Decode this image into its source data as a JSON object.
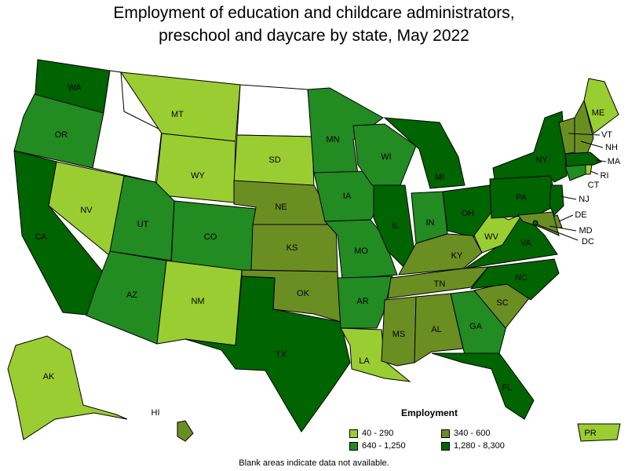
{
  "title_line1": "Employment of education and childcare administrators,",
  "title_line2": "preschool and daycare by state, May 2022",
  "legend": {
    "title": "Employment",
    "items": [
      {
        "label": "40 - 290",
        "color": "#9acd32"
      },
      {
        "label": "340 - 600",
        "color": "#6b8e23"
      },
      {
        "label": "640 - 1,250",
        "color": "#228b22"
      },
      {
        "label": "1,280 - 8,300",
        "color": "#006400"
      }
    ]
  },
  "note": "Blank areas indicate data not available.",
  "states": [
    {
      "abbr": "WA",
      "bin": 3
    },
    {
      "abbr": "OR",
      "bin": 2
    },
    {
      "abbr": "CA",
      "bin": 3
    },
    {
      "abbr": "NV",
      "bin": 0
    },
    {
      "abbr": "ID",
      "bin": -1
    },
    {
      "abbr": "MT",
      "bin": 0
    },
    {
      "abbr": "WY",
      "bin": 0
    },
    {
      "abbr": "UT",
      "bin": 2
    },
    {
      "abbr": "AZ",
      "bin": 2
    },
    {
      "abbr": "CO",
      "bin": 2
    },
    {
      "abbr": "NM",
      "bin": 0
    },
    {
      "abbr": "ND",
      "bin": -1
    },
    {
      "abbr": "SD",
      "bin": 0
    },
    {
      "abbr": "NE",
      "bin": 1
    },
    {
      "abbr": "KS",
      "bin": 1
    },
    {
      "abbr": "OK",
      "bin": 1
    },
    {
      "abbr": "TX",
      "bin": 3
    },
    {
      "abbr": "MN",
      "bin": 2
    },
    {
      "abbr": "IA",
      "bin": 2
    },
    {
      "abbr": "MO",
      "bin": 2
    },
    {
      "abbr": "AR",
      "bin": 2
    },
    {
      "abbr": "LA",
      "bin": 0
    },
    {
      "abbr": "WI",
      "bin": 2
    },
    {
      "abbr": "IL",
      "bin": 3
    },
    {
      "abbr": "MI",
      "bin": 3
    },
    {
      "abbr": "IN",
      "bin": 2
    },
    {
      "abbr": "OH",
      "bin": 3
    },
    {
      "abbr": "KY",
      "bin": 1
    },
    {
      "abbr": "TN",
      "bin": 1
    },
    {
      "abbr": "MS",
      "bin": 1
    },
    {
      "abbr": "AL",
      "bin": 1
    },
    {
      "abbr": "GA",
      "bin": 2
    },
    {
      "abbr": "FL",
      "bin": 3
    },
    {
      "abbr": "SC",
      "bin": 1
    },
    {
      "abbr": "NC",
      "bin": 3
    },
    {
      "abbr": "VA",
      "bin": 3
    },
    {
      "abbr": "WV",
      "bin": 0
    },
    {
      "abbr": "PA",
      "bin": 3
    },
    {
      "abbr": "NY",
      "bin": 3
    },
    {
      "abbr": "ME",
      "bin": 0
    },
    {
      "abbr": "VT",
      "bin": 1
    },
    {
      "abbr": "NH",
      "bin": 1
    },
    {
      "abbr": "MA",
      "bin": 3
    },
    {
      "abbr": "RI",
      "bin": 0
    },
    {
      "abbr": "CT",
      "bin": 2
    },
    {
      "abbr": "NJ",
      "bin": 3
    },
    {
      "abbr": "DE",
      "bin": 1
    },
    {
      "abbr": "MD",
      "bin": 1
    },
    {
      "abbr": "DC",
      "bin": 3
    },
    {
      "abbr": "AK",
      "bin": 0
    },
    {
      "abbr": "HI",
      "bin": 1
    },
    {
      "abbr": "PR",
      "bin": 0
    }
  ]
}
